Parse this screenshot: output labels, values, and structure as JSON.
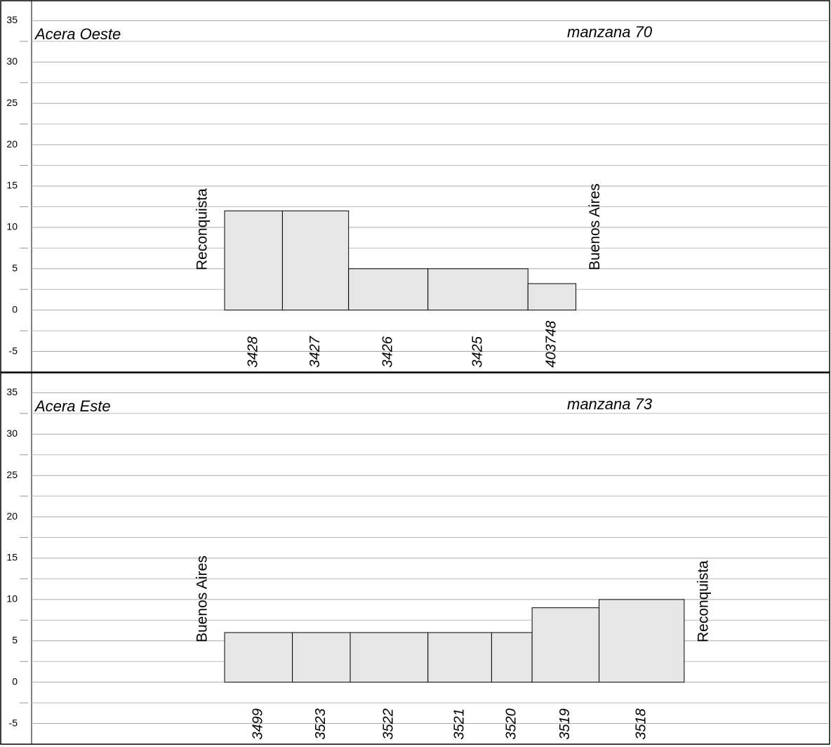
{
  "chart_data": [
    {
      "type": "bar",
      "title": "Acera Oeste",
      "subtitle": "manzana 70",
      "start_label": "Reconquista",
      "end_label": "Buenos Aires",
      "categories": [
        "3428",
        "3427",
        "3426",
        "3425",
        "403748"
      ],
      "values": [
        12,
        12,
        5,
        5,
        3.2
      ],
      "widths": [
        7.0,
        8.0,
        9.6,
        12.1,
        5.8
      ],
      "color": "#e6e6e6",
      "ylim": [
        -7.5,
        37.5
      ],
      "yticks": [
        -5,
        0,
        5,
        10,
        15,
        20,
        25,
        30,
        35
      ],
      "minor_yticks": [
        -2.5,
        2.5,
        7.5,
        12.5,
        17.5,
        22.5,
        27.5,
        32.5
      ],
      "grid": true
    },
    {
      "type": "bar",
      "title": "Acera Este",
      "subtitle": "manzana 73",
      "start_label": "Buenos Aires",
      "end_label": "Reconquista",
      "categories": [
        "3499",
        "3523",
        "3522",
        "3521",
        "3520",
        "3519",
        "3518"
      ],
      "values": [
        6,
        6,
        6,
        6,
        6,
        9,
        10
      ],
      "widths": [
        8.2,
        7.0,
        9.4,
        7.7,
        4.9,
        8.1,
        10.3
      ],
      "color": "#e6e6e6",
      "ylim": [
        -7.5,
        37.5
      ],
      "yticks": [
        -5,
        0,
        5,
        10,
        15,
        20,
        25,
        30,
        35
      ],
      "minor_yticks": [
        -2.5,
        2.5,
        7.5,
        12.5,
        17.5,
        22.5,
        27.5,
        32.5
      ],
      "grid": true
    }
  ]
}
